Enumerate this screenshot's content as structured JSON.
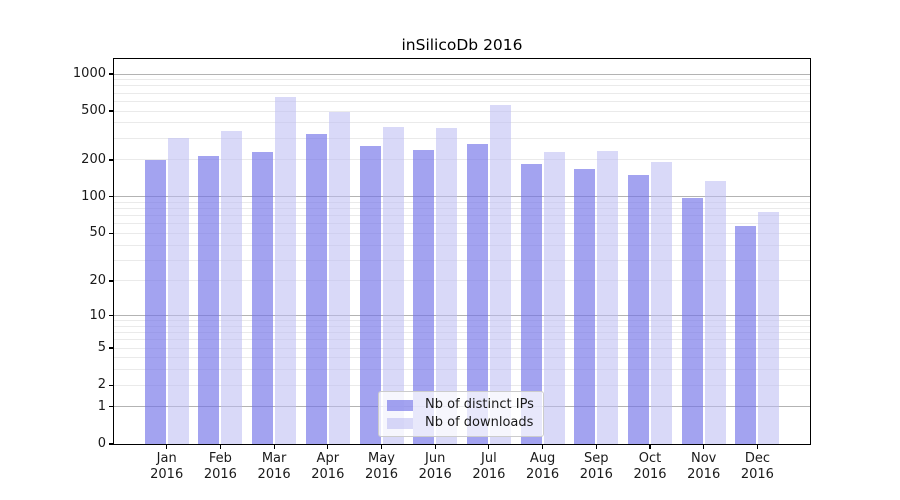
{
  "chart_data": {
    "type": "bar",
    "title": "inSilicoDb 2016",
    "categories": [
      "Jan",
      "Feb",
      "Mar",
      "Apr",
      "May",
      "Jun",
      "Jul",
      "Aug",
      "Sep",
      "Oct",
      "Nov",
      "Dec"
    ],
    "category_year": "2016",
    "series": [
      {
        "name": "Nb of distinct IPs",
        "color": "rgba(114,114,232,0.65)",
        "values": [
          200,
          216,
          233,
          328,
          262,
          243,
          269,
          186,
          169,
          150,
          97,
          58
        ]
      },
      {
        "name": "Nb of downloads",
        "color": "rgba(185,185,242,0.55)",
        "values": [
          304,
          345,
          651,
          493,
          370,
          365,
          560,
          232,
          237,
          194,
          136,
          75
        ]
      }
    ],
    "y_axis": {
      "scale": "symlog",
      "ticks": [
        1000,
        500,
        200,
        100,
        50,
        20,
        10,
        5,
        2,
        1,
        0
      ],
      "major_gridlines": [
        1,
        10,
        100,
        1000
      ],
      "minor_gridlines": [
        2,
        3,
        4,
        5,
        6,
        7,
        8,
        9,
        20,
        30,
        40,
        50,
        60,
        70,
        80,
        90,
        200,
        300,
        400,
        500,
        600,
        700,
        800,
        900
      ],
      "ylim": [
        0,
        1325
      ]
    },
    "xlabel": "",
    "ylabel": "",
    "grid": true,
    "legend_position": "lower-center-inside"
  },
  "colors": {
    "major_grid": "#b3b3b3",
    "minor_grid": "#eaeaea",
    "spine": "#000000",
    "text": "#1a1a1a",
    "legend_border": "#cccccc",
    "background": "#ffffff"
  }
}
